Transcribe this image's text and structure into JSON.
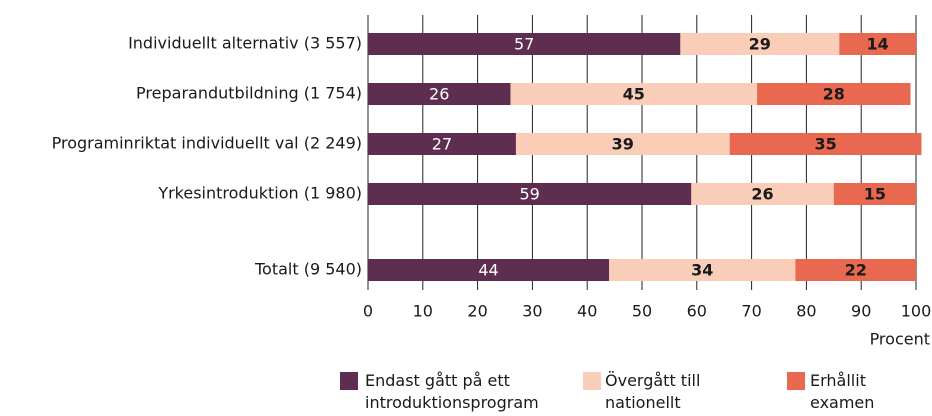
{
  "chart_data": {
    "type": "stacked_bar_horizontal",
    "categories": [
      "Individuellt alternativ (3 557)",
      "Preparandutbildning (1 754)",
      "Programinriktat individuellt val (2 249)",
      "Yrkesintroduktion (1 980)",
      "Totalt (9 540)"
    ],
    "series": [
      {
        "name": "Endast gått på ett introduktionsprogram",
        "color": "#5e2e50",
        "values": [
          57,
          26,
          27,
          59,
          44
        ]
      },
      {
        "name": "Övergått till nationellt program",
        "color": "#f9cdb8",
        "values": [
          29,
          45,
          39,
          26,
          34
        ]
      },
      {
        "name": "Erhållit examen",
        "color": "#e8694f",
        "values": [
          14,
          28,
          35,
          15,
          22
        ]
      }
    ],
    "x_label": "Procent",
    "xlim": [
      0,
      100
    ],
    "xticks": [
      0,
      10,
      20,
      30,
      40,
      50,
      60,
      70,
      80,
      90,
      100
    ],
    "grid": true,
    "legend": "bottom"
  }
}
